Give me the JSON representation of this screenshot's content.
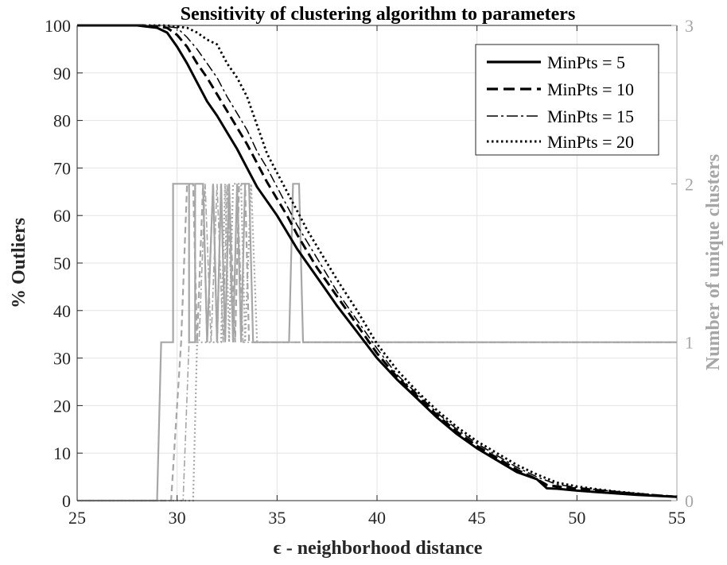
{
  "chart_data": {
    "type": "line",
    "title": "Sensitivity of clustering algorithm to parameters",
    "xlabel": "ϵ - neighborhood distance",
    "ylabel": "% Outliers",
    "ylabel_right": "Number of unique clusters",
    "xlim": [
      25,
      55
    ],
    "ylim": [
      0,
      100
    ],
    "ylim_right": [
      0,
      3
    ],
    "x_ticks": [
      25,
      30,
      35,
      40,
      45,
      50,
      55
    ],
    "y_ticks": [
      0,
      10,
      20,
      30,
      40,
      50,
      60,
      70,
      80,
      90,
      100
    ],
    "y_ticks_right": [
      0,
      1,
      2,
      3
    ],
    "grid": true,
    "legend_position": "top-right",
    "outlier_series": [
      {
        "name": "MinPts = 5",
        "style": "solid",
        "color": "#000000",
        "x": [
          25,
          28,
          29,
          29.5,
          30,
          30.5,
          31,
          31.5,
          32,
          32.5,
          33,
          33.5,
          34,
          34.5,
          35,
          35.5,
          36,
          36.5,
          37,
          37.5,
          38,
          39,
          40,
          41,
          42,
          43,
          44,
          45,
          46,
          47,
          48,
          48.5,
          49,
          50,
          51,
          52,
          53,
          54,
          55
        ],
        "y": [
          100,
          100,
          99.5,
          98.5,
          95.5,
          92,
          88,
          84,
          81,
          77.5,
          74,
          70,
          66,
          63,
          60,
          56.5,
          53,
          50,
          47,
          44,
          41,
          35.5,
          30,
          25.5,
          21.5,
          17.5,
          14,
          11,
          8.5,
          6,
          4.5,
          2.6,
          2.5,
          2.1,
          1.8,
          1.5,
          1.2,
          1.0,
          0.8
        ]
      },
      {
        "name": "MinPts = 10",
        "style": "dashed",
        "color": "#000000",
        "x": [
          25,
          28.5,
          29.5,
          30,
          30.5,
          31,
          31.5,
          32,
          32.5,
          33,
          33.5,
          34,
          34.5,
          35,
          35.5,
          36,
          36.5,
          37,
          37.5,
          38,
          39,
          40,
          41,
          42,
          43,
          44,
          45,
          46,
          47,
          48,
          48.5,
          49,
          50,
          51,
          52,
          53,
          54,
          55
        ],
        "y": [
          100,
          100,
          99.5,
          98,
          95.5,
          92,
          89,
          85.5,
          82,
          78.5,
          75,
          71,
          67,
          63.5,
          60,
          56,
          52.5,
          49,
          46,
          43,
          37,
          31,
          26,
          22,
          18,
          14.5,
          11.5,
          9,
          6.5,
          4.5,
          3.3,
          3.0,
          2.5,
          2.2,
          1.8,
          1.4,
          1.1,
          0.8
        ]
      },
      {
        "name": "MinPts = 15",
        "style": "dashdot",
        "color": "#000000",
        "x": [
          25,
          29,
          30,
          30.5,
          31,
          31.5,
          32,
          32.5,
          33,
          33.5,
          34,
          34.5,
          35,
          35.5,
          36,
          36.5,
          37,
          37.5,
          38,
          39,
          40,
          41,
          42,
          43,
          44,
          45,
          46,
          47,
          48,
          49,
          50,
          51,
          52,
          53,
          54,
          55
        ],
        "y": [
          100,
          100,
          99.5,
          97.5,
          95,
          92,
          89,
          85,
          81.5,
          78,
          73.5,
          70,
          66,
          62,
          58,
          54.5,
          51,
          47.5,
          44,
          38,
          32,
          26.5,
          22.5,
          18.5,
          15,
          12,
          9.5,
          7,
          5,
          3.4,
          2.8,
          2.3,
          1.9,
          1.5,
          1.1,
          0.8
        ]
      },
      {
        "name": "MinPts = 20",
        "style": "dotted",
        "color": "#000000",
        "x": [
          25,
          29.5,
          30.5,
          31,
          31.5,
          32,
          32.5,
          33,
          33.5,
          34,
          34.5,
          35,
          35.5,
          36,
          36.5,
          37,
          37.5,
          38,
          39,
          40,
          41,
          42,
          43,
          44,
          45,
          46,
          47,
          48,
          49,
          50,
          51,
          52,
          53,
          54,
          55
        ],
        "y": [
          100,
          100,
          99.5,
          98.5,
          97,
          96,
          92,
          89,
          85,
          79,
          73,
          69,
          65,
          61,
          57,
          53.5,
          50,
          46.5,
          40,
          33,
          27.5,
          23,
          19,
          15.5,
          12.5,
          10,
          7.5,
          5.5,
          3.8,
          3.0,
          2.4,
          1.9,
          1.5,
          1.1,
          0.8
        ]
      }
    ],
    "cluster_series": [
      {
        "name": "MinPts = 5",
        "style": "solid",
        "color": "#a6a6a6",
        "x": [
          25,
          29,
          29.2,
          29.8,
          29.8,
          30.6,
          30.6,
          30.9,
          30.9,
          31.3,
          31.5,
          31.8,
          32,
          32.2,
          32.4,
          32.6,
          32.8,
          33.0,
          33.2,
          33.4,
          33.6,
          33.8,
          34,
          35.6,
          35.8,
          36.1,
          36.3,
          55
        ],
        "y": [
          0,
          0,
          1,
          1,
          2,
          2,
          1,
          1,
          2,
          2,
          1,
          2,
          1,
          2,
          1,
          2,
          1,
          2,
          1,
          2,
          2,
          1,
          1,
          1,
          2,
          2,
          1,
          1
        ]
      },
      {
        "name": "MinPts = 10",
        "style": "dashed",
        "color": "#a6a6a6",
        "x": [
          25,
          29.7,
          30.2,
          30.5,
          30.8,
          31,
          31.3,
          31.5,
          31.8,
          32,
          32.2,
          32.4,
          32.6,
          32.9,
          33.1,
          33.4,
          33.6,
          55
        ],
        "y": [
          0,
          0,
          1,
          2,
          2,
          1,
          2,
          1,
          2,
          1,
          2,
          1,
          2,
          1,
          2,
          2,
          1,
          1
        ]
      },
      {
        "name": "MinPts = 15",
        "style": "dashdot",
        "color": "#a6a6a6",
        "x": [
          25,
          30.3,
          30.6,
          31.1,
          31.4,
          31.7,
          32,
          32.3,
          32.5,
          32.8,
          33,
          33.3,
          55
        ],
        "y": [
          0,
          0,
          1,
          1,
          2,
          1,
          2,
          1,
          2,
          1,
          2,
          1,
          1
        ]
      },
      {
        "name": "MinPts = 20",
        "style": "dotted",
        "color": "#a6a6a6",
        "x": [
          25,
          30.8,
          31.0,
          32.2,
          32.4,
          32.6,
          32.8,
          33.2,
          33.4,
          33.7,
          34,
          55
        ],
        "y": [
          0,
          0,
          1,
          1,
          2,
          1,
          2,
          2,
          1,
          2,
          1,
          1
        ]
      }
    ]
  }
}
